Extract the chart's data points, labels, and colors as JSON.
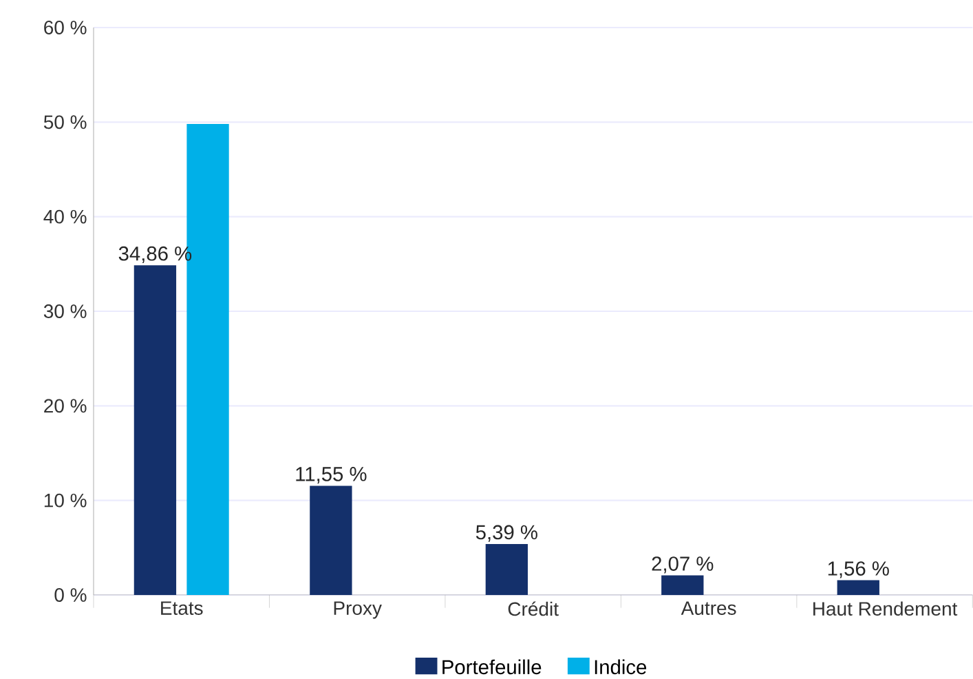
{
  "chart_data": {
    "type": "bar",
    "categories": [
      "Etats",
      "Proxy",
      "Crédit",
      "Autres",
      "Haut Rendement"
    ],
    "series": [
      {
        "name": "Portefeuille",
        "color": "#14306b",
        "values": [
          34.86,
          11.55,
          5.39,
          2.07,
          1.56
        ],
        "value_labels": [
          "34,86 %",
          "11,55 %",
          "5,39 %",
          "2,07 %",
          "1,56 %"
        ]
      },
      {
        "name": "Indice",
        "color": "#00b0e8",
        "values": [
          49.8,
          null,
          null,
          null,
          null
        ]
      }
    ],
    "ylim": [
      0,
      60
    ],
    "yticks": [
      {
        "value": 0,
        "label": "0 %"
      },
      {
        "value": 10,
        "label": "10 %"
      },
      {
        "value": 20,
        "label": "20 %"
      },
      {
        "value": 30,
        "label": "30 %"
      },
      {
        "value": 40,
        "label": "40 %"
      },
      {
        "value": 50,
        "label": "50 %"
      },
      {
        "value": 60,
        "label": "60 %"
      }
    ],
    "grid": "y",
    "legend": "bottom"
  }
}
